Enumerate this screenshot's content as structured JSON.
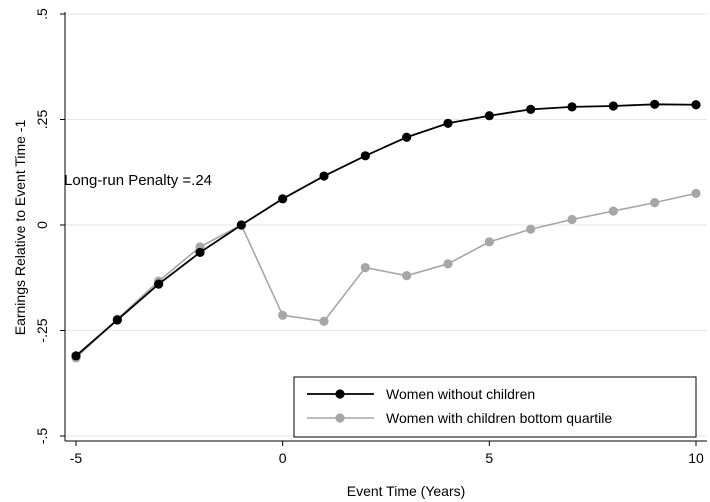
{
  "chart_data": {
    "type": "line",
    "title": "",
    "xlabel": "Event Time (Years)",
    "ylabel": "Earnings Relative to Event Time -1",
    "xlim": [
      -5,
      10
    ],
    "ylim": [
      -0.5,
      0.5
    ],
    "x_ticks": [
      -5,
      0,
      5,
      10
    ],
    "y_ticks": [
      -0.5,
      -0.25,
      0,
      0.25,
      0.5
    ],
    "x_tick_labels": [
      "-5",
      "0",
      "5",
      "10"
    ],
    "y_tick_labels": [
      "-.5",
      "-.25",
      "0",
      ".25",
      ".5"
    ],
    "grid": "horizontal",
    "legend_position": "bottom-right",
    "annotation": "Long-run Penalty =.24",
    "x": [
      -5,
      -4,
      -3,
      -2,
      -1,
      0,
      1,
      2,
      3,
      4,
      5,
      6,
      7,
      8,
      9,
      10
    ],
    "series": [
      {
        "name": "Women without children",
        "color": "#000000",
        "values": [
          -0.31,
          -0.225,
          -0.14,
          -0.065,
          0.0,
          0.062,
          0.116,
          0.164,
          0.208,
          0.241,
          0.259,
          0.274,
          0.28,
          0.282,
          0.286,
          0.285
        ]
      },
      {
        "name": "Women with children bottom quartile",
        "color": "#a6a6a6",
        "values": [
          -0.315,
          -0.223,
          -0.133,
          -0.052,
          0.0,
          -0.214,
          -0.228,
          -0.101,
          -0.12,
          -0.092,
          -0.04,
          -0.01,
          0.013,
          0.033,
          0.053,
          0.075
        ]
      }
    ]
  }
}
